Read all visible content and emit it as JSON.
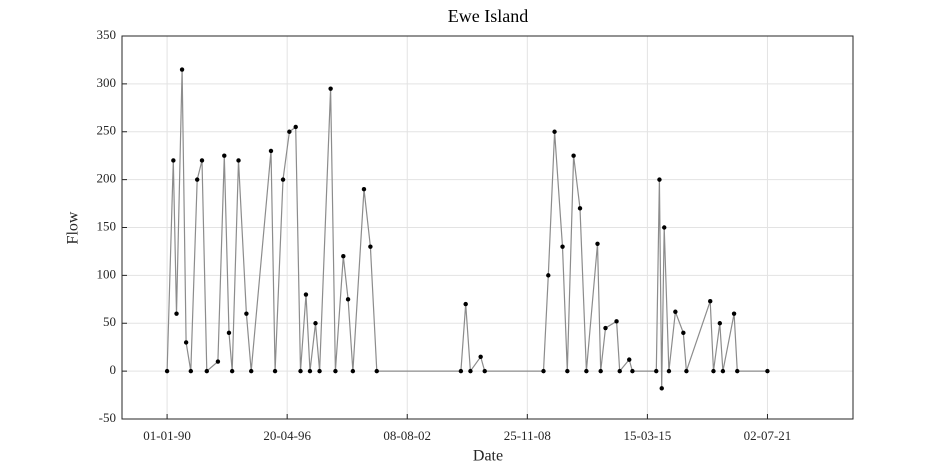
{
  "chart_data": {
    "type": "line",
    "title": "Ewe Island",
    "x_label": "Date",
    "y_label": "Flow",
    "x": [
      "1990-01-01",
      "1990-05-01",
      "1990-07-01",
      "1990-10-15",
      "1991-01-01",
      "1991-04-01",
      "1991-08-01",
      "1991-11-01",
      "1992-02-01",
      "1992-09-01",
      "1993-01-01",
      "1993-04-01",
      "1993-06-01",
      "1993-10-01",
      "1994-03-01",
      "1994-06-01",
      "1995-06-15",
      "1995-09-01",
      "1996-02-01",
      "1996-06-01",
      "1996-10-01",
      "1997-01-01",
      "1997-04-15",
      "1997-07-01",
      "1997-10-15",
      "1998-01-01",
      "1998-08-01",
      "1998-11-01",
      "1999-04-01",
      "1999-07-01",
      "1999-10-01",
      "2000-05-01",
      "2000-09-01",
      "2001-01-01",
      "2005-06-01",
      "2005-09-01",
      "2005-12-01",
      "2006-06-15",
      "2006-09-01",
      "2009-10-01",
      "2010-01-01",
      "2010-05-01",
      "2010-10-01",
      "2011-01-01",
      "2011-05-01",
      "2011-09-01",
      "2012-01-01",
      "2012-08-01",
      "2012-10-01",
      "2013-01-01",
      "2013-08-01",
      "2013-10-01",
      "2014-04-01",
      "2014-06-01",
      "2015-09-01",
      "2015-11-01",
      "2015-12-15",
      "2016-02-01",
      "2016-05-01",
      "2016-09-01",
      "2017-02-01",
      "2017-04-01",
      "2018-07-01",
      "2018-09-01",
      "2019-01-01",
      "2019-03-01",
      "2019-10-01",
      "2019-12-01",
      "2021-07-01"
    ],
    "series": [
      {
        "name": "Flow",
        "color": "#8c8c8c",
        "marker_color": "#000000",
        "values": [
          0,
          220,
          60,
          315,
          30,
          0,
          200,
          220,
          0,
          10,
          225,
          40,
          0,
          220,
          60,
          0,
          230,
          0,
          200,
          250,
          255,
          0,
          80,
          0,
          50,
          0,
          295,
          0,
          120,
          75,
          0,
          190,
          130,
          0,
          0,
          70,
          0,
          15,
          0,
          0,
          100,
          250,
          130,
          0,
          225,
          170,
          0,
          133,
          0,
          45,
          52,
          0,
          12,
          0,
          0,
          200,
          -18,
          150,
          0,
          62,
          40,
          0,
          73,
          0,
          50,
          0,
          60,
          0,
          0
        ]
      }
    ],
    "xlim": [
      "1987-08-21",
      "2025-12-27"
    ],
    "xticks": [
      {
        "value": "1990-01-01",
        "label": "01-01-90"
      },
      {
        "value": "1996-04-20",
        "label": "20-04-96"
      },
      {
        "value": "2002-08-08",
        "label": "08-08-02"
      },
      {
        "value": "2008-11-25",
        "label": "25-11-08"
      },
      {
        "value": "2015-03-15",
        "label": "15-03-15"
      },
      {
        "value": "2021-07-02",
        "label": "02-07-21"
      }
    ],
    "ylim": [
      -50,
      350
    ],
    "yticks": [
      -50,
      0,
      50,
      100,
      150,
      200,
      250,
      300,
      350
    ],
    "grid": true
  }
}
